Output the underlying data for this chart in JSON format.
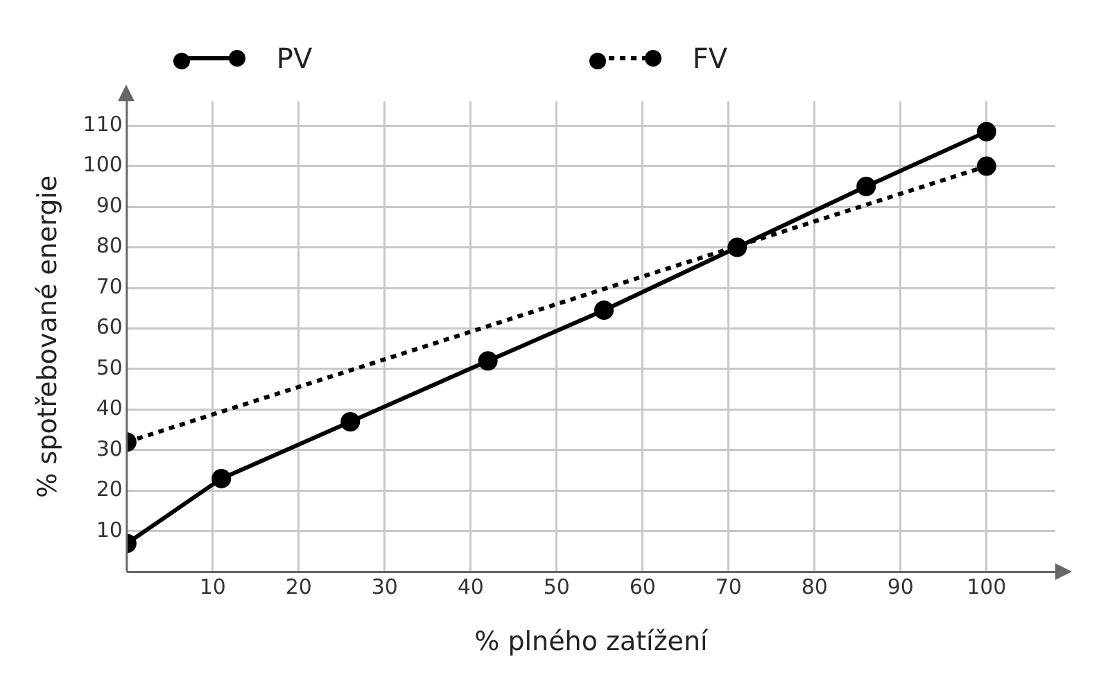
{
  "chart_data": {
    "type": "line",
    "xlabel": "% plného zatížení",
    "ylabel": "% spotřebované energie",
    "xlim": [
      0,
      108
    ],
    "ylim": [
      0,
      116
    ],
    "xticks": [
      10,
      20,
      30,
      40,
      50,
      60,
      70,
      80,
      90,
      100
    ],
    "yticks": [
      10,
      20,
      30,
      40,
      50,
      60,
      70,
      80,
      90,
      100,
      110
    ],
    "series": [
      {
        "name": "PV",
        "color": "#000000",
        "line_style": "solid",
        "x": [
          0,
          11,
          26,
          42,
          55.5,
          71,
          86,
          100
        ],
        "values": [
          7,
          23,
          37,
          52,
          64.5,
          80,
          95,
          108.5
        ]
      },
      {
        "name": "FV",
        "color": "#000000",
        "line_style": "dotted",
        "x": [
          0,
          100
        ],
        "values": [
          32,
          100
        ]
      }
    ],
    "marker": "circle",
    "grid": true,
    "legend": "top"
  }
}
